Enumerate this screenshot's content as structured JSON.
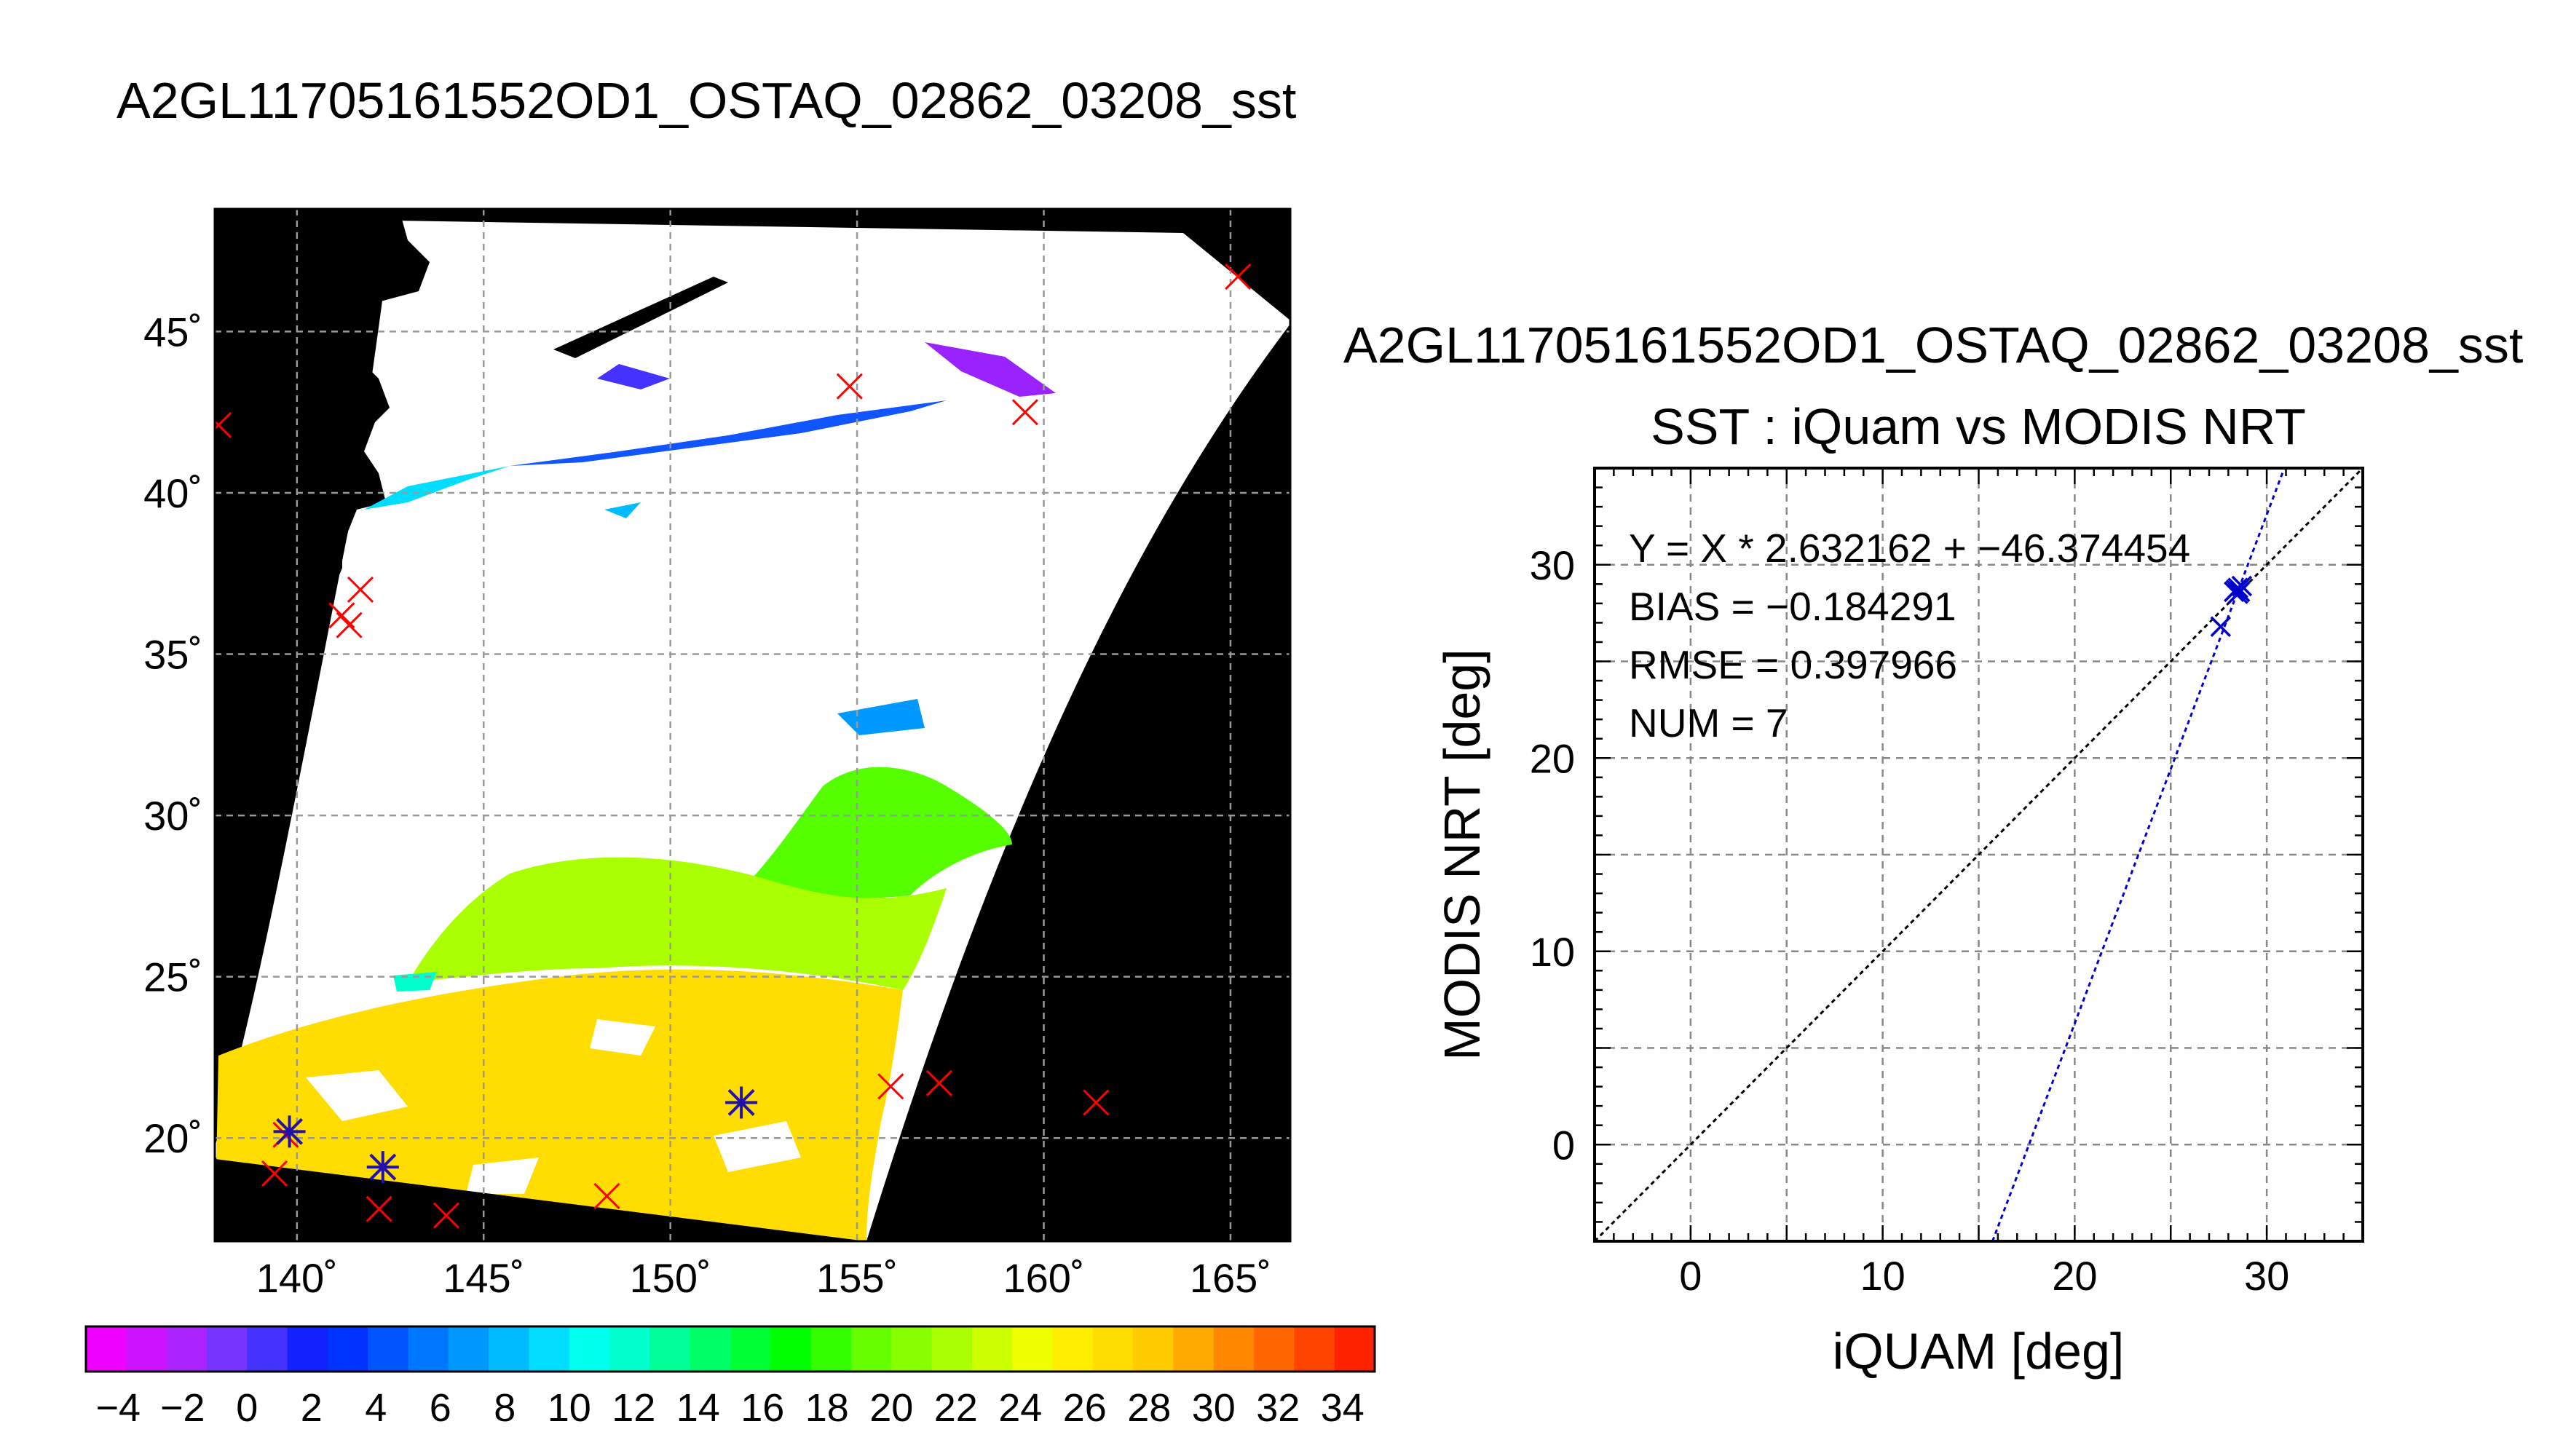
{
  "figure_title": "A2GL11705161552OD1_OSTAQ_02862_03208_sst",
  "chart_data": [
    {
      "type": "map",
      "lon_ticks": [
        "140˚",
        "145˚",
        "150˚",
        "155˚",
        "160˚",
        "165˚"
      ],
      "lon_values": [
        140,
        145,
        150,
        155,
        160,
        165
      ],
      "lat_ticks": [
        "45˚",
        "40˚",
        "35˚",
        "30˚",
        "25˚",
        "20˚"
      ],
      "lat_values": [
        45,
        40,
        35,
        30,
        25,
        20
      ],
      "lon_range": [
        137.8,
        166.6
      ],
      "lat_range": [
        16.8,
        48.8
      ],
      "grid": true,
      "colorbar": {
        "ticks": [
          "−4",
          "−2",
          "0",
          "2",
          "4",
          "6",
          "8",
          "10",
          "12",
          "14",
          "16",
          "18",
          "20",
          "22",
          "24",
          "26",
          "28",
          "30",
          "32",
          "34"
        ],
        "range": [
          -5,
          35
        ],
        "colors": [
          "#ee00ff",
          "#cc11ff",
          "#aa22ff",
          "#7733ff",
          "#4433ff",
          "#1122ff",
          "#0033ff",
          "#0055ff",
          "#0077ff",
          "#0099ff",
          "#00bbff",
          "#00ddff",
          "#00ffee",
          "#00ffcc",
          "#00ff99",
          "#00ff66",
          "#00ff33",
          "#00ff00",
          "#33ff00",
          "#66ff00",
          "#88ff00",
          "#aaff00",
          "#ccff00",
          "#eeff00",
          "#ffee00",
          "#ffdd00",
          "#ffcc00",
          "#ffaa00",
          "#ff8800",
          "#ff6600",
          "#ff4400",
          "#ff2200"
        ]
      },
      "matchups_red_x": [
        {
          "lon": 165.2,
          "lat": 46.7
        },
        {
          "lon": 137.9,
          "lat": 42.1
        },
        {
          "lon": 154.8,
          "lat": 43.3
        },
        {
          "lon": 159.5,
          "lat": 42.5
        },
        {
          "lon": 141.7,
          "lat": 37.0
        },
        {
          "lon": 141.2,
          "lat": 36.2
        },
        {
          "lon": 141.4,
          "lat": 35.9
        },
        {
          "lon": 139.7,
          "lat": 20.1
        },
        {
          "lon": 139.4,
          "lat": 18.9
        },
        {
          "lon": 142.3,
          "lat": 19.1
        },
        {
          "lon": 142.2,
          "lat": 17.8
        },
        {
          "lon": 144.0,
          "lat": 17.6
        },
        {
          "lon": 148.3,
          "lat": 18.2
        },
        {
          "lon": 151.9,
          "lat": 21.1
        },
        {
          "lon": 155.9,
          "lat": 21.6
        },
        {
          "lon": 157.2,
          "lat": 21.7
        },
        {
          "lon": 161.4,
          "lat": 21.1
        }
      ],
      "matchups_blue_star": [
        {
          "lon": 139.8,
          "lat": 20.2
        },
        {
          "lon": 142.3,
          "lat": 19.1
        },
        {
          "lon": 151.9,
          "lat": 21.1
        }
      ]
    },
    {
      "type": "scatter",
      "title": "A2GL11705161552OD1_OSTAQ_02862_03208_sst",
      "subtitle": "SST : iQuam vs MODIS NRT",
      "xlabel": "iQUAM [deg]",
      "ylabel": "MODIS NRT [deg]",
      "xlim": [
        -5,
        35
      ],
      "ylim": [
        -5,
        35
      ],
      "x_ticks": [
        "0",
        "10",
        "20",
        "30"
      ],
      "y_ticks": [
        "0",
        "10",
        "20",
        "30"
      ],
      "grid": true,
      "stats": {
        "fit": "Y = X * 2.632162 + −46.374454",
        "bias": "BIAS = −0.184291",
        "rmse": "RMSE = 0.397966",
        "num": "NUM = 7"
      },
      "fit_line": {
        "slope": 2.632162,
        "intercept": -46.374454
      },
      "points": [
        {
          "x": 27.6,
          "y": 26.8
        },
        {
          "x": 28.3,
          "y": 28.6
        },
        {
          "x": 28.5,
          "y": 28.8
        },
        {
          "x": 28.6,
          "y": 28.6
        },
        {
          "x": 28.4,
          "y": 28.7
        },
        {
          "x": 28.7,
          "y": 28.9
        },
        {
          "x": 28.5,
          "y": 28.5
        }
      ]
    }
  ]
}
